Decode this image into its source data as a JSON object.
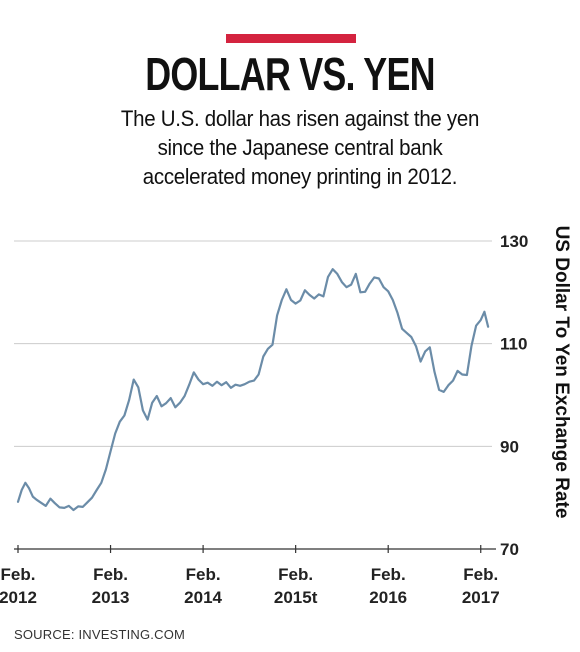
{
  "header": {
    "title": "DOLLAR VS. YEN",
    "subtitle_lines": [
      "The U.S. dollar has risen against the yen",
      "since the Japanese central bank",
      "accelerated money printing in 2012."
    ]
  },
  "source": "SOURCE: INVESTING.COM",
  "colors": {
    "accent": "#d4233f",
    "line": "#6b8ca8",
    "grid": "#cccccc"
  },
  "chart_data": {
    "type": "line",
    "title": "DOLLAR VS. YEN",
    "ylabel": "US Dollar To Yen Exchange Rate",
    "xlabel": "",
    "ylim": [
      70,
      130
    ],
    "yticks": [
      70,
      90,
      110,
      130
    ],
    "grid": true,
    "xlim": [
      2012.0,
      2017.1
    ],
    "xticks": [
      {
        "x": 2012,
        "line1": "Feb.",
        "line2": "2012"
      },
      {
        "x": 2013,
        "line1": "Feb.",
        "line2": "2013"
      },
      {
        "x": 2014,
        "line1": "Feb.",
        "line2": "2014"
      },
      {
        "x": 2015,
        "line1": "Feb.",
        "line2": "2015t"
      },
      {
        "x": 2016,
        "line1": "Feb.",
        "line2": "2016"
      },
      {
        "x": 2017,
        "line1": "Feb.",
        "line2": "2017"
      }
    ],
    "series": [
      {
        "name": "",
        "x": [
          2012.0,
          2012.04,
          2012.08,
          2012.12,
          2012.16,
          2012.2,
          2012.25,
          2012.3,
          2012.35,
          2012.4,
          2012.45,
          2012.5,
          2012.55,
          2012.6,
          2012.65,
          2012.7,
          2012.75,
          2012.8,
          2012.85,
          2012.9,
          2012.95,
          2013.0,
          2013.05,
          2013.1,
          2013.15,
          2013.2,
          2013.25,
          2013.3,
          2013.35,
          2013.4,
          2013.45,
          2013.5,
          2013.55,
          2013.6,
          2013.65,
          2013.7,
          2013.75,
          2013.8,
          2013.85,
          2013.9,
          2013.95,
          2014.0,
          2014.05,
          2014.1,
          2014.15,
          2014.2,
          2014.25,
          2014.3,
          2014.35,
          2014.4,
          2014.45,
          2014.5,
          2014.55,
          2014.6,
          2014.65,
          2014.7,
          2014.75,
          2014.8,
          2014.85,
          2014.9,
          2014.95,
          2015.0,
          2015.05,
          2015.1,
          2015.15,
          2015.2,
          2015.25,
          2015.3,
          2015.35,
          2015.4,
          2015.45,
          2015.5,
          2015.55,
          2015.6,
          2015.65,
          2015.7,
          2015.75,
          2015.8,
          2015.85,
          2015.9,
          2015.95,
          2016.0,
          2016.05,
          2016.1,
          2016.15,
          2016.2,
          2016.25,
          2016.3,
          2016.35,
          2016.4,
          2016.45,
          2016.5,
          2016.55,
          2016.6,
          2016.65,
          2016.7,
          2016.75,
          2016.8,
          2016.85,
          2016.9,
          2016.95,
          2017.0,
          2017.04,
          2017.08
        ],
        "values": [
          79.2,
          81.5,
          82.9,
          81.8,
          80.2,
          79.6,
          79.0,
          78.4,
          79.8,
          78.9,
          78.1,
          78.0,
          78.4,
          77.6,
          78.3,
          78.2,
          79.1,
          80.0,
          81.5,
          82.9,
          85.5,
          89.0,
          92.5,
          94.8,
          96.0,
          99.0,
          103.0,
          101.5,
          97.0,
          95.2,
          98.5,
          99.8,
          97.8,
          98.4,
          99.4,
          97.6,
          98.5,
          99.8,
          102.0,
          104.4,
          103.0,
          102.1,
          102.4,
          101.8,
          102.6,
          101.9,
          102.5,
          101.4,
          102.0,
          101.8,
          102.1,
          102.6,
          102.8,
          104.0,
          107.5,
          109.0,
          109.8,
          115.5,
          118.5,
          120.6,
          118.5,
          117.8,
          118.4,
          120.4,
          119.5,
          118.8,
          119.6,
          119.2,
          123.0,
          124.5,
          123.6,
          122.0,
          121.0,
          121.5,
          123.6,
          120.0,
          120.1,
          121.7,
          122.9,
          122.7,
          121.0,
          120.2,
          118.5,
          116.0,
          112.9,
          112.1,
          111.3,
          109.5,
          106.5,
          108.5,
          109.3,
          104.5,
          101.0,
          100.6,
          101.9,
          102.8,
          104.7,
          104.0,
          103.9,
          109.6,
          113.5,
          114.6,
          116.2,
          113.3
        ]
      }
    ]
  }
}
